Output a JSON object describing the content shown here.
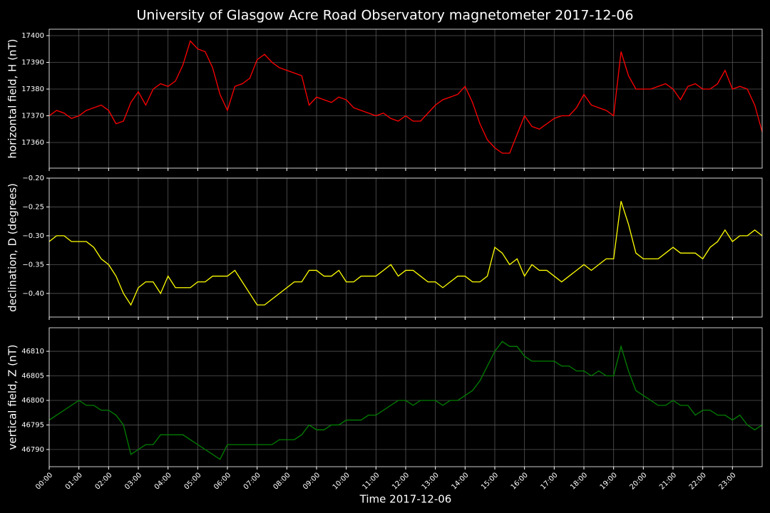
{
  "chart_data": [
    {
      "type": "line",
      "title": "University of Glasgow Acre Road Observatory magnetometer 2017-12-06",
      "ylabel": "horizontal field, H (nT)",
      "grid": true,
      "x": [
        0,
        0.25,
        0.5,
        0.75,
        1,
        1.25,
        1.5,
        1.75,
        2,
        2.25,
        2.5,
        2.75,
        3,
        3.25,
        3.5,
        3.75,
        4,
        4.25,
        4.5,
        4.75,
        5,
        5.25,
        5.5,
        5.75,
        6,
        6.25,
        6.5,
        6.75,
        7,
        7.25,
        7.5,
        7.75,
        8,
        8.25,
        8.5,
        8.75,
        9,
        9.25,
        9.5,
        9.75,
        10,
        10.25,
        10.5,
        10.75,
        11,
        11.25,
        11.5,
        11.75,
        12,
        12.25,
        12.5,
        12.75,
        13,
        13.25,
        13.5,
        13.75,
        14,
        14.25,
        14.5,
        14.75,
        15,
        15.25,
        15.5,
        15.75,
        16,
        16.25,
        16.5,
        16.75,
        17,
        17.25,
        17.5,
        17.75,
        18,
        18.25,
        18.5,
        18.75,
        19,
        19.25,
        19.5,
        19.75,
        20,
        20.25,
        20.5,
        20.75,
        21,
        21.25,
        21.5,
        21.75,
        22,
        22.25,
        22.5,
        22.75,
        23,
        23.25,
        23.5,
        23.75,
        24
      ],
      "series": [
        {
          "color": "#ff0000",
          "values": [
            17370,
            17372,
            17371,
            17369,
            17370,
            17372,
            17373,
            17374,
            17372,
            17367,
            17368,
            17375,
            17379,
            17374,
            17380,
            17382,
            17381,
            17383,
            17389,
            17398,
            17395,
            17394,
            17388,
            17378,
            17372,
            17381,
            17382,
            17384,
            17391,
            17393,
            17390,
            17388,
            17387,
            17386,
            17385,
            17374,
            17377,
            17376,
            17375,
            17377,
            17376,
            17373,
            17372,
            17371,
            17370,
            17371,
            17369,
            17368,
            17370,
            17368,
            17368,
            17371,
            17374,
            17376,
            17377,
            17378,
            17381,
            17375,
            17367,
            17361,
            17358,
            17356,
            17356,
            17363,
            17370,
            17366,
            17365,
            17367,
            17369,
            17370,
            17370,
            17373,
            17378,
            17374,
            17373,
            17372,
            17370,
            17394,
            17385,
            17380,
            17380,
            17380,
            17381,
            17382,
            17380,
            17376,
            17381,
            17382,
            17380,
            17380,
            17382,
            17387,
            17380,
            17381,
            17380,
            17374,
            17364
          ]
        }
      ],
      "xlim": [
        0,
        24
      ],
      "xticks": [
        0,
        1,
        2,
        3,
        4,
        5,
        6,
        7,
        8,
        9,
        10,
        11,
        12,
        13,
        14,
        15,
        16,
        17,
        18,
        19,
        20,
        21,
        22,
        23
      ],
      "ylim": [
        17350.4,
        17402.4
      ],
      "yticks": [
        17360,
        17370,
        17380,
        17390,
        17400
      ]
    },
    {
      "type": "line",
      "ylabel": "declination, D (degrees)",
      "grid": true,
      "x": [
        0,
        0.25,
        0.5,
        0.75,
        1,
        1.25,
        1.5,
        1.75,
        2,
        2.25,
        2.5,
        2.75,
        3,
        3.25,
        3.5,
        3.75,
        4,
        4.25,
        4.5,
        4.75,
        5,
        5.25,
        5.5,
        5.75,
        6,
        6.25,
        6.5,
        6.75,
        7,
        7.25,
        7.5,
        7.75,
        8,
        8.25,
        8.5,
        8.75,
        9,
        9.25,
        9.5,
        9.75,
        10,
        10.25,
        10.5,
        10.75,
        11,
        11.25,
        11.5,
        11.75,
        12,
        12.25,
        12.5,
        12.75,
        13,
        13.25,
        13.5,
        13.75,
        14,
        14.25,
        14.5,
        14.75,
        15,
        15.25,
        15.5,
        15.75,
        16,
        16.25,
        16.5,
        16.75,
        17,
        17.25,
        17.5,
        17.75,
        18,
        18.25,
        18.5,
        18.75,
        19,
        19.25,
        19.5,
        19.75,
        20,
        20.25,
        20.5,
        20.75,
        21,
        21.25,
        21.5,
        21.75,
        22,
        22.25,
        22.5,
        22.75,
        23,
        23.25,
        23.5,
        23.75,
        24
      ],
      "series": [
        {
          "color": "#ffff00",
          "values": [
            -0.31,
            -0.3,
            -0.3,
            -0.31,
            -0.31,
            -0.31,
            -0.32,
            -0.34,
            -0.35,
            -0.37,
            -0.4,
            -0.42,
            -0.39,
            -0.38,
            -0.38,
            -0.4,
            -0.37,
            -0.39,
            -0.39,
            -0.39,
            -0.38,
            -0.38,
            -0.37,
            -0.37,
            -0.37,
            -0.36,
            -0.38,
            -0.4,
            -0.42,
            -0.42,
            -0.41,
            -0.4,
            -0.39,
            -0.38,
            -0.38,
            -0.36,
            -0.36,
            -0.37,
            -0.37,
            -0.36,
            -0.38,
            -0.38,
            -0.37,
            -0.37,
            -0.37,
            -0.36,
            -0.35,
            -0.37,
            -0.36,
            -0.36,
            -0.37,
            -0.38,
            -0.38,
            -0.39,
            -0.38,
            -0.37,
            -0.37,
            -0.38,
            -0.38,
            -0.37,
            -0.32,
            -0.33,
            -0.35,
            -0.34,
            -0.37,
            -0.35,
            -0.36,
            -0.36,
            -0.37,
            -0.38,
            -0.37,
            -0.36,
            -0.35,
            -0.36,
            -0.35,
            -0.34,
            -0.34,
            -0.24,
            -0.28,
            -0.33,
            -0.34,
            -0.34,
            -0.34,
            -0.33,
            -0.32,
            -0.33,
            -0.33,
            -0.33,
            -0.34,
            -0.32,
            -0.31,
            -0.29,
            -0.31,
            -0.3,
            -0.3,
            -0.29,
            -0.3
          ]
        }
      ],
      "xlim": [
        0,
        24
      ],
      "xticks": [
        0,
        1,
        2,
        3,
        4,
        5,
        6,
        7,
        8,
        9,
        10,
        11,
        12,
        13,
        14,
        15,
        16,
        17,
        18,
        19,
        20,
        21,
        22,
        23
      ],
      "ylim": [
        -0.441,
        -0.2
      ],
      "yticks": [
        {
          "value": -0.4,
          "label": "−0.40"
        },
        {
          "value": -0.35,
          "label": "−0.35"
        },
        {
          "value": -0.3,
          "label": "−0.30"
        },
        {
          "value": -0.25,
          "label": "−0.25"
        },
        {
          "value": -0.2,
          "label": "−0.20"
        }
      ]
    },
    {
      "type": "line",
      "ylabel": "vertical field, Z (nT)",
      "xlabel": "Time 2017-12-06",
      "grid": true,
      "x": [
        0,
        0.25,
        0.5,
        0.75,
        1,
        1.25,
        1.5,
        1.75,
        2,
        2.25,
        2.5,
        2.75,
        3,
        3.25,
        3.5,
        3.75,
        4,
        4.25,
        4.5,
        4.75,
        5,
        5.25,
        5.5,
        5.75,
        6,
        6.25,
        6.5,
        6.75,
        7,
        7.25,
        7.5,
        7.75,
        8,
        8.25,
        8.5,
        8.75,
        9,
        9.25,
        9.5,
        9.75,
        10,
        10.25,
        10.5,
        10.75,
        11,
        11.25,
        11.5,
        11.75,
        12,
        12.25,
        12.5,
        12.75,
        13,
        13.25,
        13.5,
        13.75,
        14,
        14.25,
        14.5,
        14.75,
        15,
        15.25,
        15.5,
        15.75,
        16,
        16.25,
        16.5,
        16.75,
        17,
        17.25,
        17.5,
        17.75,
        18,
        18.25,
        18.5,
        18.75,
        19,
        19.25,
        19.5,
        19.75,
        20,
        20.25,
        20.5,
        20.75,
        21,
        21.25,
        21.5,
        21.75,
        22,
        22.25,
        22.5,
        22.75,
        23,
        23.25,
        23.5,
        23.75,
        24
      ],
      "series": [
        {
          "color": "#008000",
          "values": [
            46796,
            46797,
            46798,
            46799,
            46800,
            46799,
            46799,
            46798,
            46798,
            46797,
            46795,
            46789,
            46790,
            46791,
            46791,
            46793,
            46793,
            46793,
            46793,
            46792,
            46791,
            46790,
            46789,
            46788,
            46791,
            46791,
            46791,
            46791,
            46791,
            46791,
            46791,
            46792,
            46792,
            46792,
            46793,
            46795,
            46794,
            46794,
            46795,
            46795,
            46796,
            46796,
            46796,
            46797,
            46797,
            46798,
            46799,
            46800,
            46800,
            46799,
            46800,
            46800,
            46800,
            46799,
            46800,
            46800,
            46801,
            46802,
            46804,
            46807,
            46810,
            46812,
            46811,
            46811,
            46809,
            46808,
            46808,
            46808,
            46808,
            46807,
            46807,
            46806,
            46806,
            46805,
            46806,
            46805,
            46805,
            46811,
            46806,
            46802,
            46801,
            46800,
            46799,
            46799,
            46800,
            46799,
            46799,
            46797,
            46798,
            46798,
            46797,
            46797,
            46796,
            46797,
            46795,
            46794,
            46795
          ]
        }
      ],
      "xlim": [
        0,
        24
      ],
      "xticks": [
        {
          "value": 0,
          "label": "00:00"
        },
        {
          "value": 1,
          "label": "01:00"
        },
        {
          "value": 2,
          "label": "02:00"
        },
        {
          "value": 3,
          "label": "03:00"
        },
        {
          "value": 4,
          "label": "04:00"
        },
        {
          "value": 5,
          "label": "05:00"
        },
        {
          "value": 6,
          "label": "06:00"
        },
        {
          "value": 7,
          "label": "07:00"
        },
        {
          "value": 8,
          "label": "08:00"
        },
        {
          "value": 9,
          "label": "09:00"
        },
        {
          "value": 10,
          "label": "10:00"
        },
        {
          "value": 11,
          "label": "11:00"
        },
        {
          "value": 12,
          "label": "12:00"
        },
        {
          "value": 13,
          "label": "13:00"
        },
        {
          "value": 14,
          "label": "14:00"
        },
        {
          "value": 15,
          "label": "15:00"
        },
        {
          "value": 16,
          "label": "16:00"
        },
        {
          "value": 17,
          "label": "17:00"
        },
        {
          "value": 18,
          "label": "18:00"
        },
        {
          "value": 19,
          "label": "19:00"
        },
        {
          "value": 20,
          "label": "20:00"
        },
        {
          "value": 21,
          "label": "21:00"
        },
        {
          "value": 22,
          "label": "22:00"
        },
        {
          "value": 23,
          "label": "23:00"
        }
      ],
      "ylim": [
        46786.5,
        46814.8
      ],
      "yticks": [
        46790,
        46795,
        46800,
        46805,
        46810
      ]
    }
  ]
}
